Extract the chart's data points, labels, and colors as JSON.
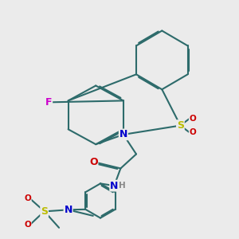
{
  "bg_color": "#ebebeb",
  "bond_color": "#2d6b6b",
  "bond_lw": 1.5,
  "dbo": 0.05,
  "colors": {
    "F": "#cc00cc",
    "N": "#0000cc",
    "O": "#cc0000",
    "S": "#bbbb00",
    "H": "#888888",
    "bg": "#ebebeb"
  },
  "fs": 9.0,
  "fs_small": 7.5
}
